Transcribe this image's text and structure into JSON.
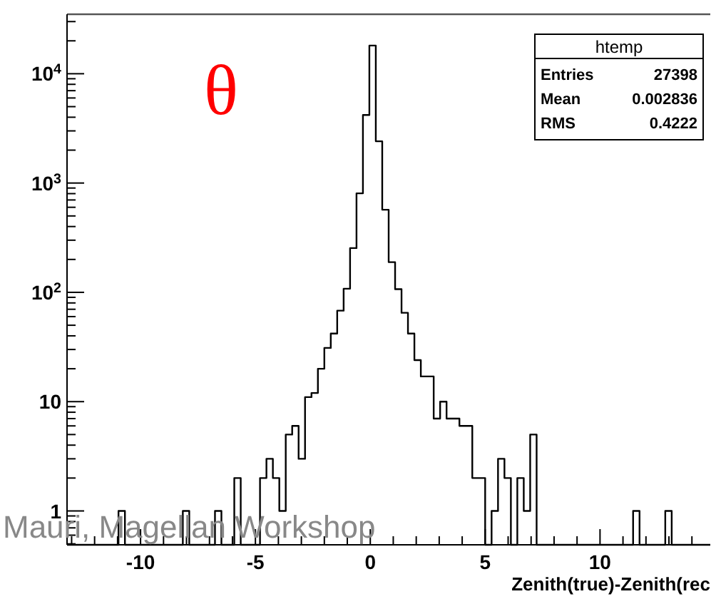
{
  "chart_data": {
    "type": "histogram",
    "log": true,
    "xlabel": "Zenith(true)-Zenith(rec",
    "annotations": [
      "θ",
      "htemp",
      "Entries",
      "27398",
      "Mean",
      "0.002836",
      "RMS",
      "0.4222",
      "Mauri, Magellan Workshop"
    ],
    "color": "#000000",
    "bins": [
      -13.2,
      -12.92,
      -12.64,
      -12.36,
      -12.08,
      -11.8,
      -11.52,
      -11.24,
      -10.96,
      -10.68,
      -10.4,
      -10.12,
      -9.84,
      -9.56,
      -9.28,
      -9,
      -8.72,
      -8.44,
      -8.16,
      -7.88,
      -7.6,
      -7.32,
      -7.04,
      -6.76,
      -6.48,
      -6.2,
      -5.92,
      -5.64,
      -5.36,
      -5.08,
      -4.8,
      -4.52,
      -4.24,
      -3.96,
      -3.68,
      -3.4,
      -3.12,
      -2.84,
      -2.56,
      -2.28,
      -2,
      -1.72,
      -1.44,
      -1.16,
      -0.88,
      -0.6,
      -0.32,
      -0.04,
      0.24,
      0.52,
      0.8,
      1.08,
      1.36,
      1.64,
      1.92,
      2.2,
      2.48,
      2.76,
      3.04,
      3.32,
      3.6,
      3.88,
      4.16,
      4.44,
      4.72,
      5,
      5.28,
      5.56,
      5.84,
      6.12,
      6.4,
      6.68,
      6.96,
      7.24,
      7.52,
      7.8,
      8.08,
      8.36,
      8.64,
      8.92,
      9.2,
      9.48,
      9.76,
      10.04,
      10.32,
      10.6,
      10.88,
      11.16,
      11.44,
      11.72,
      12,
      12.28,
      12.56,
      12.84,
      13.12,
      13.4,
      13.68,
      13.96,
      14.24,
      14.52,
      14.8
    ],
    "values": [
      null,
      null,
      null,
      null,
      null,
      null,
      null,
      null,
      1,
      null,
      null,
      null,
      null,
      null,
      null,
      null,
      null,
      null,
      1,
      null,
      null,
      null,
      null,
      1,
      null,
      null,
      2,
      null,
      null,
      null,
      2,
      3,
      2,
      1,
      5,
      6,
      3,
      11,
      12,
      20,
      31,
      42,
      68,
      108,
      254,
      805,
      4190,
      18100,
      2410,
      570,
      189,
      107,
      65,
      42,
      24,
      17,
      17,
      7,
      10,
      7,
      7,
      6,
      6,
      2,
      2,
      null,
      1,
      3,
      2,
      null,
      2,
      1,
      5,
      null,
      null,
      null,
      null,
      null,
      null,
      null,
      null,
      null,
      null,
      null,
      null,
      null,
      null,
      null,
      1,
      null,
      null,
      null,
      null,
      1,
      null,
      null,
      null,
      null,
      null,
      null
    ],
    "xlim": [
      -13.2,
      14.8
    ],
    "xticks": [
      {
        "value": -13,
        "label": null
      },
      {
        "value": -12,
        "label": null
      },
      {
        "value": -11,
        "label": null
      },
      -10,
      {
        "value": -9,
        "label": null
      },
      {
        "value": -8,
        "label": null
      },
      {
        "value": -7,
        "label": null
      },
      {
        "value": -6,
        "label": null
      },
      -5,
      {
        "value": -4,
        "label": null
      },
      {
        "value": -3,
        "label": null
      },
      {
        "value": -2,
        "label": null
      },
      {
        "value": -1,
        "label": null
      },
      0,
      {
        "value": 1,
        "label": null
      },
      {
        "value": 2,
        "label": null
      },
      {
        "value": 3,
        "label": null
      },
      {
        "value": 4,
        "label": null
      },
      5,
      {
        "value": 6,
        "label": null
      },
      {
        "value": 7,
        "label": null
      },
      {
        "value": 8,
        "label": null
      },
      {
        "value": 9,
        "label": null
      },
      10,
      {
        "value": 11,
        "label": null
      },
      {
        "value": 12,
        "label": null
      },
      {
        "value": 13,
        "label": null
      },
      {
        "value": 14,
        "label": null
      }
    ],
    "ylim": [
      0.49,
      35000
    ],
    "yticks": [
      {
        "value": 0.5,
        "label": null
      },
      {
        "value": 0.6,
        "label": null
      },
      {
        "value": 0.7,
        "label": null
      },
      {
        "value": 0.8,
        "label": null
      },
      {
        "value": 0.9,
        "label": null
      },
      1,
      {
        "value": 2,
        "label": null
      },
      {
        "value": 3,
        "label": null
      },
      {
        "value": 4,
        "label": null
      },
      {
        "value": 5,
        "label": null
      },
      {
        "value": 6,
        "label": null
      },
      {
        "value": 7,
        "label": null
      },
      {
        "value": 8,
        "label": null
      },
      {
        "value": 9,
        "label": null
      },
      10,
      {
        "value": 20,
        "label": null
      },
      {
        "value": 30,
        "label": null
      },
      {
        "value": 40,
        "label": null
      },
      {
        "value": 50,
        "label": null
      },
      {
        "value": 60,
        "label": null
      },
      {
        "value": 70,
        "label": null
      },
      {
        "value": 80,
        "label": null
      },
      {
        "value": 90,
        "label": null
      },
      {
        "value": 100,
        "label": "10$^{2}$"
      },
      {
        "value": 200,
        "label": null
      },
      {
        "value": 300,
        "label": null
      },
      {
        "value": 400,
        "label": null
      },
      {
        "value": 500,
        "label": null
      },
      {
        "value": 600,
        "label": null
      },
      {
        "value": 700,
        "label": null
      },
      {
        "value": 800,
        "label": null
      },
      {
        "value": 900,
        "label": null
      },
      {
        "value": 1000,
        "label": "10$^{3}$"
      },
      {
        "value": 2000,
        "label": null
      },
      {
        "value": 3000,
        "label": null
      },
      {
        "value": 4000,
        "label": null
      },
      {
        "value": 5000,
        "label": null
      },
      {
        "value": 6000,
        "label": null
      },
      {
        "value": 7000,
        "label": null
      },
      {
        "value": 8000,
        "label": null
      },
      {
        "value": 9000,
        "label": null
      },
      {
        "value": 10000,
        "label": "10$^{4}$"
      },
      {
        "value": 20000,
        "label": null
      },
      {
        "value": 30000,
        "label": null
      }
    ]
  }
}
